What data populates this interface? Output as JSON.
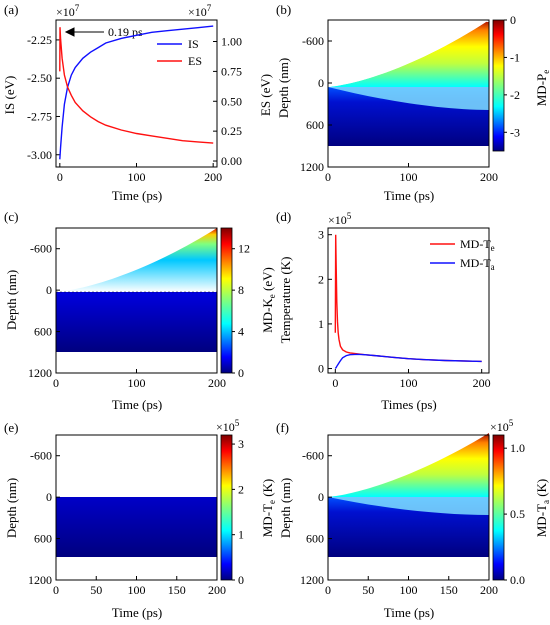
{
  "colors": {
    "is_series": "#1010ff",
    "es_series": "#ff1010",
    "axis": "#000000",
    "jet_low": "#00007f",
    "jet_high": "#7f0000",
    "empty_region": "#ffffff"
  },
  "chart_data": [
    {
      "panel": "(a)",
      "type": "line",
      "xlabel": "Time (ps)",
      "ylabel": "IS (eV)",
      "y2label": "ES (eV)",
      "x_ticks": [
        "0",
        "100",
        "200"
      ],
      "y_ticks": [
        "-3.00",
        "-2.75",
        "-2.50",
        "-2.25"
      ],
      "y2_ticks": [
        "0.00",
        "0.25",
        "0.50",
        "0.75",
        "1.00"
      ],
      "y_multiplier": "×10",
      "y_multiplier_exp": "7",
      "y2_multiplier": "×10",
      "y2_multiplier_exp": "7",
      "xlim": [
        -5,
        205
      ],
      "ylim": [
        -3.08,
        -2.12
      ],
      "y2lim": [
        -0.05,
        1.18
      ],
      "annotation": "0.19 ps",
      "legend_position": "upper-right",
      "series": [
        {
          "name": "IS",
          "axis": "left",
          "x": [
            0,
            1,
            3,
            6,
            10,
            15,
            20,
            30,
            40,
            50,
            60,
            80,
            100,
            120,
            140,
            160,
            180,
            200
          ],
          "y": [
            -3.03,
            -2.95,
            -2.82,
            -2.67,
            -2.56,
            -2.48,
            -2.43,
            -2.37,
            -2.33,
            -2.3,
            -2.27,
            -2.24,
            -2.22,
            -2.2,
            -2.19,
            -2.18,
            -2.17,
            -2.16
          ]
        },
        {
          "name": "ES",
          "axis": "right",
          "x": [
            0,
            0.19,
            1,
            3,
            6,
            10,
            15,
            20,
            30,
            40,
            50,
            60,
            80,
            100,
            120,
            140,
            160,
            180,
            200
          ],
          "y": [
            0.75,
            1.12,
            1.02,
            0.86,
            0.72,
            0.62,
            0.55,
            0.49,
            0.42,
            0.37,
            0.33,
            0.3,
            0.26,
            0.23,
            0.21,
            0.19,
            0.17,
            0.16,
            0.15
          ]
        }
      ]
    },
    {
      "panel": "(b)",
      "type": "heatmap",
      "xlabel": "Time (ps)",
      "ylabel": "Depth (nm)",
      "x_ticks": [
        "0",
        "100",
        "200"
      ],
      "y_ticks": [
        "-600",
        "0",
        "600",
        "1200"
      ],
      "colorbar_label": "MD-P",
      "colorbar_sub": "e",
      "colorbar_ticks": [
        "0",
        "-1",
        "-2",
        "-3"
      ],
      "color_range": [
        -3.5,
        0
      ],
      "xlim": [
        0,
        200
      ],
      "ylim": [
        -900,
        1200
      ],
      "bottom_depth": 900
    },
    {
      "panel": "(c)",
      "type": "heatmap",
      "xlabel": "Time (ps)",
      "ylabel": "Depth (nm)",
      "x_ticks": [
        "0",
        "100",
        "200"
      ],
      "y_ticks": [
        "-600",
        "0",
        "600",
        "1200"
      ],
      "colorbar_label": "MD-K",
      "colorbar_sub": "e",
      "colorbar_unit": " (eV)",
      "colorbar_ticks": [
        "0",
        "4",
        "8",
        "12"
      ],
      "color_range": [
        0,
        14
      ],
      "xlim": [
        0,
        200
      ],
      "ylim": [
        -900,
        1200
      ],
      "bottom_depth": 900
    },
    {
      "panel": "(d)",
      "type": "line",
      "xlabel": "Times (ps)",
      "ylabel": "Temperature (K)",
      "x_ticks": [
        "0",
        "100",
        "200"
      ],
      "y_ticks": [
        "0",
        "1",
        "2",
        "3"
      ],
      "y_multiplier": "×10",
      "y_multiplier_exp": "5",
      "xlim": [
        -10,
        210
      ],
      "ylim": [
        -0.1,
        3.15
      ],
      "legend_position": "upper-right",
      "series": [
        {
          "name": "MD-T",
          "sub": "e",
          "x": [
            0,
            0.5,
            1,
            2,
            3,
            4,
            5,
            7,
            10,
            15,
            20,
            30,
            40,
            60,
            80,
            100,
            120,
            150,
            200
          ],
          "y": [
            0.8,
            3.0,
            2.4,
            1.5,
            1.05,
            0.8,
            0.65,
            0.5,
            0.42,
            0.37,
            0.35,
            0.33,
            0.31,
            0.28,
            0.25,
            0.22,
            0.2,
            0.18,
            0.16
          ]
        },
        {
          "name": "MD-T",
          "sub": "a",
          "x": [
            0,
            1,
            2,
            4,
            6,
            8,
            10,
            15,
            20,
            30,
            40,
            60,
            80,
            100,
            120,
            150,
            200
          ],
          "y": [
            0.0,
            0.02,
            0.05,
            0.1,
            0.15,
            0.2,
            0.24,
            0.29,
            0.31,
            0.32,
            0.31,
            0.28,
            0.25,
            0.22,
            0.2,
            0.18,
            0.16
          ]
        }
      ]
    },
    {
      "panel": "(e)",
      "type": "heatmap",
      "xlabel": "Time (ps)",
      "ylabel": "Depth (nm)",
      "x_ticks": [
        "0",
        "50",
        "100",
        "150",
        "200"
      ],
      "y_ticks": [
        "-600",
        "0",
        "600",
        "1200"
      ],
      "colorbar_label": "MD-T",
      "colorbar_sub": "e",
      "colorbar_unit": " (K)",
      "colorbar_ticks": [
        "0",
        "1",
        "2",
        "3"
      ],
      "colorbar_multiplier": "×10",
      "colorbar_multiplier_exp": "5",
      "color_range": [
        0,
        3.2
      ],
      "xlim": [
        0,
        200
      ],
      "ylim": [
        -900,
        1200
      ],
      "bottom_depth": 900
    },
    {
      "panel": "(f)",
      "type": "heatmap",
      "xlabel": "Time (ps)",
      "ylabel": "Depth (nm)",
      "x_ticks": [
        "0",
        "50",
        "100",
        "150",
        "200"
      ],
      "y_ticks": [
        "-600",
        "0",
        "600",
        "1200"
      ],
      "colorbar_label": "MD-T",
      "colorbar_sub": "a",
      "colorbar_unit": " (K)",
      "colorbar_ticks": [
        "0.0",
        "0.5",
        "1.0"
      ],
      "colorbar_multiplier": "×10",
      "colorbar_multiplier_exp": "5",
      "color_range": [
        0,
        1.1
      ],
      "xlim": [
        0,
        200
      ],
      "ylim": [
        -900,
        1200
      ],
      "bottom_depth": 900
    }
  ]
}
